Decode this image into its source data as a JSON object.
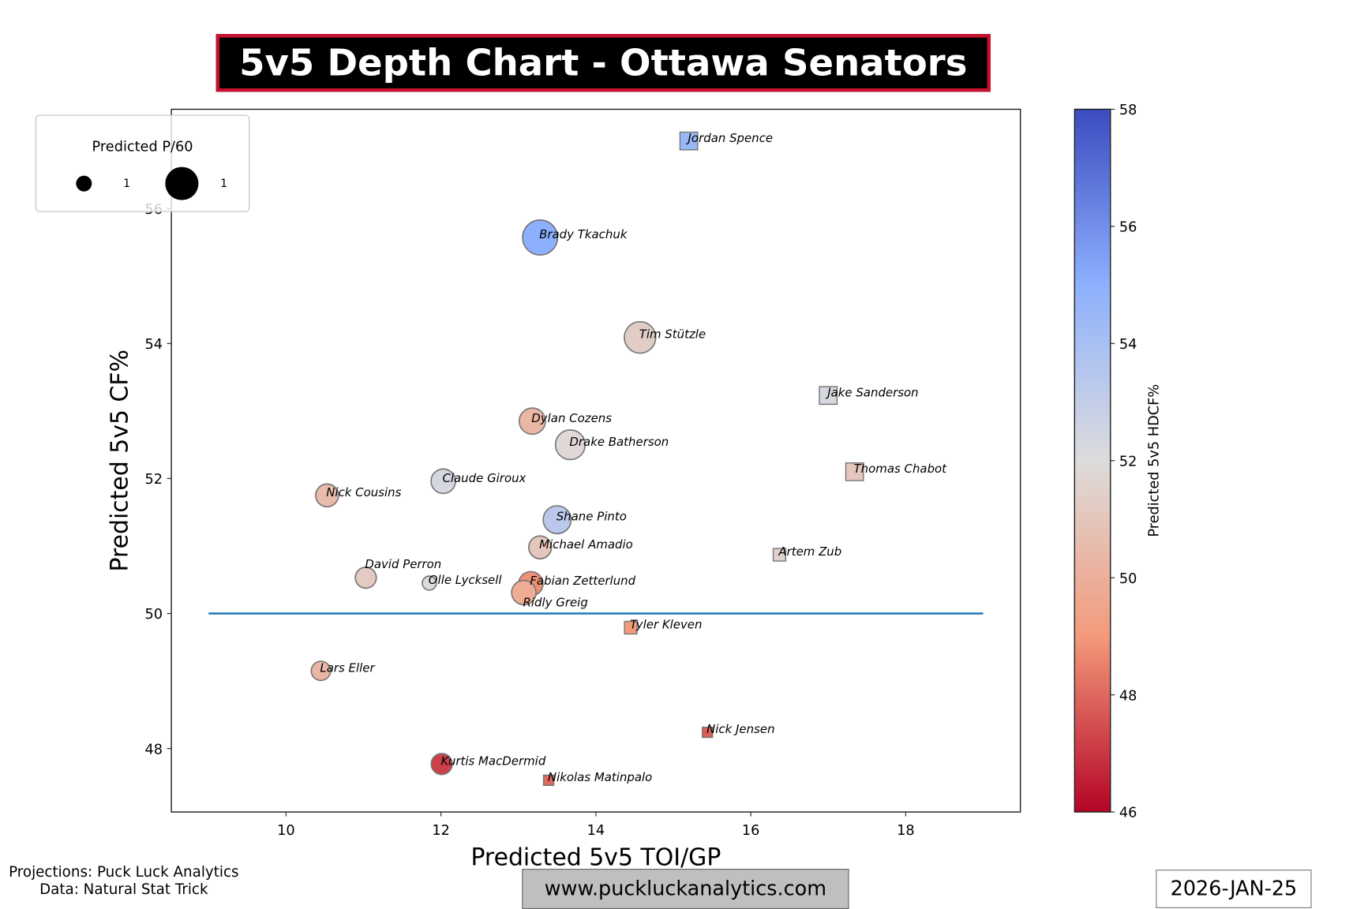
{
  "title": "5v5 Depth Chart - Ottawa Senators",
  "footer": {
    "credits_line1": "Projections: Puck Luck Analytics",
    "credits_line2": "Data: Natural Stat Trick",
    "website": "www.puckluckanalytics.com",
    "date": "2026-JAN-25"
  },
  "colors": {
    "title_border": "#c8102e",
    "title_bg": "#000000",
    "reference_line": "#1f77b4",
    "marker_edge": "#777777"
  },
  "chart_data": {
    "type": "scatter",
    "xlabel": "Predicted 5v5 TOI/GP",
    "ylabel": "Predicted 5v5 CF%",
    "xlim": [
      8.52,
      19.48
    ],
    "ylim": [
      47.06,
      57.47
    ],
    "xticks": [
      10,
      12,
      14,
      16,
      18
    ],
    "yticks": [
      48,
      50,
      52,
      54,
      56
    ],
    "grid": false,
    "reference_line": {
      "y": 50,
      "x_from": 9,
      "x_to": 19
    },
    "colorbar": {
      "label": "Predicted 5v5 HDCF%",
      "min": 46,
      "max": 58,
      "ticks": [
        46,
        48,
        50,
        52,
        54,
        56,
        58
      ],
      "colormap": "coolwarm_r"
    },
    "size_legend": {
      "title": "Predicted P/60",
      "entries": [
        "1",
        "1"
      ],
      "placement": "top-left"
    },
    "marker_shapes": {
      "circle": "forward",
      "square": "defense"
    },
    "points": [
      {
        "name": "Jordan Spence",
        "x": 15.2,
        "y": 57.0,
        "hdcf": 54.5,
        "p60": 0.6,
        "shape": "square"
      },
      {
        "name": "Brady Tkachuk",
        "x": 13.28,
        "y": 55.57,
        "hdcf": 55.0,
        "p60": 2.35,
        "shape": "circle"
      },
      {
        "name": "Tim Stützle",
        "x": 14.57,
        "y": 54.09,
        "hdcf": 51.3,
        "p60": 1.9,
        "shape": "circle"
      },
      {
        "name": "Jake Sanderson",
        "x": 17.0,
        "y": 53.23,
        "hdcf": 52.3,
        "p60": 0.6,
        "shape": "square"
      },
      {
        "name": "Dylan Cozens",
        "x": 13.18,
        "y": 52.85,
        "hdcf": 50.3,
        "p60": 1.32,
        "shape": "circle"
      },
      {
        "name": "Drake Batherson",
        "x": 13.67,
        "y": 52.5,
        "hdcf": 51.8,
        "p60": 1.7,
        "shape": "circle"
      },
      {
        "name": "Thomas Chabot",
        "x": 17.34,
        "y": 52.1,
        "hdcf": 51.0,
        "p60": 0.6,
        "shape": "square"
      },
      {
        "name": "Claude Giroux",
        "x": 12.03,
        "y": 51.96,
        "hdcf": 52.3,
        "p60": 1.15,
        "shape": "circle"
      },
      {
        "name": "Nick Cousins",
        "x": 10.53,
        "y": 51.75,
        "hdcf": 50.5,
        "p60": 1.0,
        "shape": "circle"
      },
      {
        "name": "Shane Pinto",
        "x": 13.5,
        "y": 51.39,
        "hdcf": 53.3,
        "p60": 1.5,
        "shape": "circle"
      },
      {
        "name": "Michael Amadio",
        "x": 13.28,
        "y": 50.98,
        "hdcf": 51.0,
        "p60": 1.0,
        "shape": "circle"
      },
      {
        "name": "Artem Zub",
        "x": 16.37,
        "y": 50.87,
        "hdcf": 51.5,
        "p60": 0.3,
        "shape": "square"
      },
      {
        "name": "David Perron",
        "x": 11.03,
        "y": 50.53,
        "hdcf": 51.2,
        "p60": 0.85,
        "shape": "circle"
      },
      {
        "name": "Olle Lycksell",
        "x": 11.85,
        "y": 50.45,
        "hdcf": 52.0,
        "p60": 0.38,
        "shape": "circle"
      },
      {
        "name": "Fabian Zetterlund",
        "x": 13.16,
        "y": 50.44,
        "hdcf": 48.8,
        "p60": 1.15,
        "shape": "circle"
      },
      {
        "name": "Ridly Greig",
        "x": 13.07,
        "y": 50.31,
        "hdcf": 49.8,
        "p60": 1.15,
        "shape": "circle"
      },
      {
        "name": "Tyler Kleven",
        "x": 14.45,
        "y": 49.79,
        "hdcf": 49.0,
        "p60": 0.3,
        "shape": "square"
      },
      {
        "name": "Lars Eller",
        "x": 10.45,
        "y": 49.15,
        "hdcf": 50.3,
        "p60": 0.71,
        "shape": "circle"
      },
      {
        "name": "Nick Jensen",
        "x": 15.44,
        "y": 48.24,
        "hdcf": 47.8,
        "p60": 0.2,
        "shape": "square"
      },
      {
        "name": "Kurtis MacDermid",
        "x": 12.01,
        "y": 47.77,
        "hdcf": 47.2,
        "p60": 0.85,
        "shape": "circle"
      },
      {
        "name": "Nikolas Matinpalo",
        "x": 13.39,
        "y": 47.53,
        "hdcf": 48.0,
        "p60": 0.2,
        "shape": "square"
      }
    ]
  }
}
